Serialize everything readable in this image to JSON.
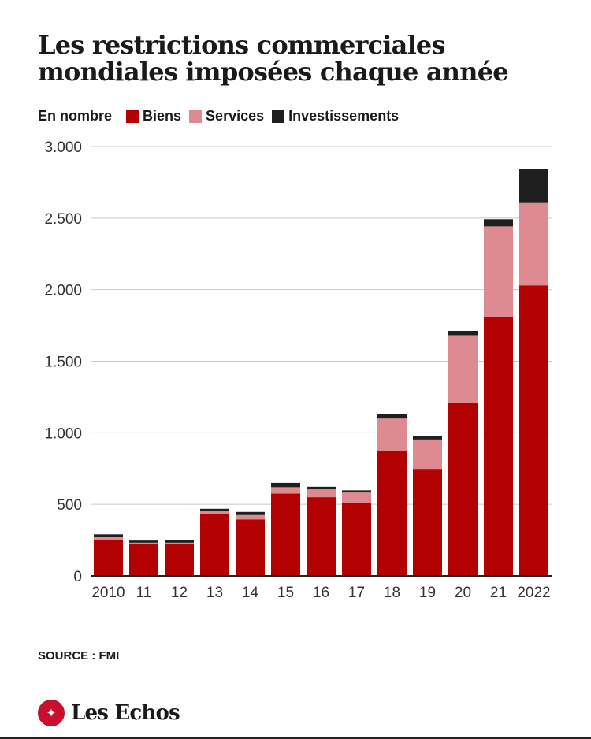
{
  "title": "Les restrictions commerciales mondiales imposées chaque année",
  "subtitle": "En nombre",
  "source": "SOURCE : FMI",
  "brand": "Les Echos",
  "colors": {
    "biens": "#b30000",
    "services": "#de8a91",
    "investissements": "#1f1f1f",
    "grid": "#c8c8c8",
    "brand": "#c8102e"
  },
  "chart_data": {
    "type": "bar",
    "stacked": true,
    "categories": [
      "2010",
      "11",
      "12",
      "13",
      "14",
      "15",
      "16",
      "17",
      "18",
      "19",
      "20",
      "21",
      "2022"
    ],
    "series": [
      {
        "name": "Biens",
        "color": "#b30000",
        "values": [
          250,
          222,
          222,
          432,
          395,
          575,
          550,
          513,
          870,
          748,
          1212,
          1812,
          2030
        ]
      },
      {
        "name": "Services",
        "color": "#de8a91",
        "values": [
          20,
          10,
          10,
          22,
          30,
          45,
          55,
          70,
          230,
          205,
          470,
          630,
          575
        ]
      },
      {
        "name": "Investissements",
        "color": "#1f1f1f",
        "values": [
          20,
          15,
          17,
          15,
          22,
          30,
          18,
          15,
          30,
          25,
          30,
          50,
          240
        ]
      }
    ],
    "yticks": [
      0,
      500,
      1000,
      1500,
      2000,
      2500,
      3000
    ],
    "ytick_labels": [
      "0",
      "500",
      "1.000",
      "1.500",
      "2.000",
      "2.500",
      "3.000"
    ],
    "ylim": [
      0,
      3000
    ],
    "grid": true,
    "legend_position": "top-left"
  }
}
